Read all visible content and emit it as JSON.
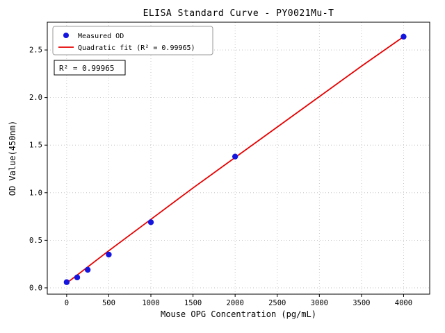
{
  "figure": {
    "title": "ELISA Standard Curve - PY0021Mu-T",
    "xlabel": "Mouse OPG Concentration (pg/mL)",
    "ylabel": "OD Value(450nm)",
    "annotation": "R² = 0.99965",
    "legend": {
      "measured": "Measured OD",
      "fit": "Quadratic fit (R² = 0.99965)"
    }
  },
  "chart_data": {
    "type": "scatter",
    "title": "ELISA Standard Curve - PY0021Mu-T",
    "xlabel": "Mouse OPG Concentration (pg/mL)",
    "ylabel": "OD Value(450nm)",
    "r_squared": 0.99965,
    "series": [
      {
        "name": "Measured OD",
        "type": "scatter",
        "color": "#1515e0",
        "x": [
          0,
          125,
          250,
          500,
          1000,
          2000,
          4000
        ],
        "y": [
          0.06,
          0.11,
          0.19,
          0.35,
          0.69,
          1.38,
          2.64
        ]
      },
      {
        "name": "Quadratic fit (R² = 0.99965)",
        "type": "line",
        "color": "#e60000",
        "x": [
          0,
          500,
          1000,
          1500,
          2000,
          2500,
          3000,
          3500,
          4000
        ],
        "y": [
          0.05,
          0.39,
          0.72,
          1.05,
          1.37,
          1.69,
          2.01,
          2.33,
          2.64
        ]
      }
    ],
    "xticks": [
      0,
      500,
      1000,
      1500,
      2000,
      2500,
      3000,
      3500,
      4000
    ],
    "xtick_labels": [
      "0",
      "500",
      "1000",
      "1500",
      "2000",
      "2500",
      "3000",
      "3500",
      "4000"
    ],
    "yticks": [
      0,
      0.5,
      1,
      1.5,
      2,
      2.5
    ],
    "ytick_labels": [
      "0.0",
      "0.5",
      "1.0",
      "1.5",
      "2.0",
      "2.5"
    ],
    "xlim": [
      -230,
      4310
    ],
    "ylim": [
      -0.066,
      2.792
    ],
    "grid": true,
    "legend_position": "upper left"
  }
}
